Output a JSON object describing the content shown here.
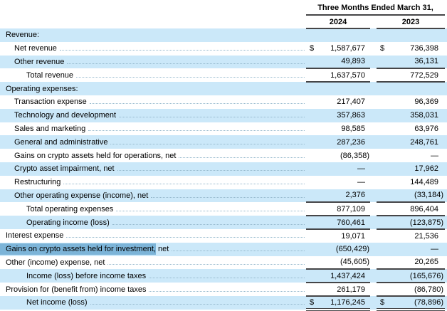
{
  "header": {
    "period": "Three Months Ended March 31,",
    "col_2024": "2024",
    "col_2023": "2023"
  },
  "currency_symbol": "$",
  "colors": {
    "row_shade": "#cbe8f9",
    "selection_highlight": "#7cb4d8",
    "rule_line": "#454547",
    "leader_dots": "#96b9cd",
    "text": "#000000"
  },
  "table": {
    "rows": [
      {
        "label": "Revenue:",
        "indent": 0,
        "section": true,
        "shade": true
      },
      {
        "label": "Net revenue",
        "indent": 1,
        "shade": false,
        "dollar": true,
        "v2024": "1,587,677",
        "v2023": "736,398"
      },
      {
        "label": "Other revenue",
        "indent": 1,
        "shade": true,
        "v2024": "49,893",
        "v2023": "36,131"
      },
      {
        "label": "Total revenue",
        "indent": 2,
        "shade": false,
        "v2024": "1,637,570",
        "v2023": "772,529",
        "border": "top-bottom"
      },
      {
        "label": "Operating expenses:",
        "indent": 0,
        "section": true,
        "shade": true
      },
      {
        "label": "Transaction expense",
        "indent": 1,
        "shade": false,
        "v2024": "217,407",
        "v2023": "96,369"
      },
      {
        "label": "Technology and development",
        "indent": 1,
        "shade": true,
        "v2024": "357,863",
        "v2023": "358,031"
      },
      {
        "label": "Sales and marketing",
        "indent": 1,
        "shade": false,
        "v2024": "98,585",
        "v2023": "63,976"
      },
      {
        "label": "General and administrative",
        "indent": 1,
        "shade": true,
        "v2024": "287,236",
        "v2023": "248,761"
      },
      {
        "label": "Gains on crypto assets held for operations, net",
        "indent": 1,
        "shade": false,
        "v2024": "(86,358)",
        "v2023": "—"
      },
      {
        "label": "Crypto asset impairment, net",
        "indent": 1,
        "shade": true,
        "v2024": "—",
        "v2023": "17,962"
      },
      {
        "label": "Restructuring",
        "indent": 1,
        "shade": false,
        "v2024": "—",
        "v2023": "144,489"
      },
      {
        "label": "Other operating expense (income), net",
        "indent": 1,
        "shade": true,
        "v2024": "2,376",
        "v2023": "(33,184)"
      },
      {
        "label": "Total operating expenses",
        "indent": 2,
        "shade": false,
        "v2024": "877,109",
        "v2023": "896,404",
        "border": "top"
      },
      {
        "label": "Operating income (loss)",
        "indent": 2,
        "shade": true,
        "v2024": "760,461",
        "v2023": "(123,875)",
        "border": "top-bottom"
      },
      {
        "label": "Interest expense",
        "indent": 0,
        "shade": false,
        "v2024": "19,071",
        "v2023": "21,536"
      },
      {
        "label": "Gains on crypto assets held for investment, net",
        "indent": 0,
        "shade": true,
        "highlighted_part": "Gains on crypto assets held for investment,",
        "v2024": "(650,429)",
        "v2023": "—"
      },
      {
        "label": "Other (income) expense, net",
        "indent": 0,
        "shade": false,
        "v2024": "(45,605)",
        "v2023": "20,265"
      },
      {
        "label": "Income (loss) before income taxes",
        "indent": 2,
        "shade": true,
        "v2024": "1,437,424",
        "v2023": "(165,676)",
        "border": "top-bottom"
      },
      {
        "label": "Provision for (benefit from) income taxes",
        "indent": 0,
        "shade": false,
        "v2024": "261,179",
        "v2023": "(86,780)"
      },
      {
        "label": "Net income (loss)",
        "indent": 2,
        "shade": true,
        "dollar": true,
        "v2024": "1,176,245",
        "v2023": "(78,896)",
        "border": "top-double"
      }
    ]
  }
}
